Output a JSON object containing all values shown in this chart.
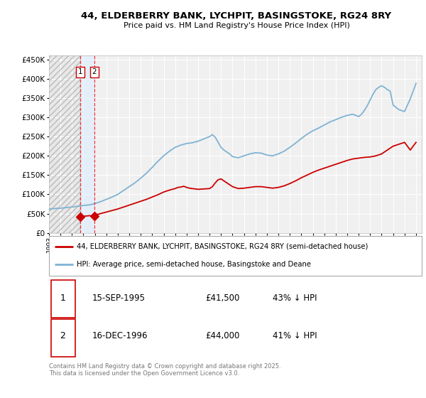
{
  "title": "44, ELDERBERRY BANK, LYCHPIT, BASINGSTOKE, RG24 8RY",
  "subtitle": "Price paid vs. HM Land Registry's House Price Index (HPI)",
  "legend_house": "44, ELDERBERRY BANK, LYCHPIT, BASINGSTOKE, RG24 8RY (semi-detached house)",
  "legend_hpi": "HPI: Average price, semi-detached house, Basingstoke and Deane",
  "transaction1_date": "15-SEP-1995",
  "transaction1_price": "£41,500",
  "transaction1_hpi": "43% ↓ HPI",
  "transaction1_year": 1995.71,
  "transaction1_value": 41500,
  "transaction2_date": "16-DEC-1996",
  "transaction2_price": "£44,000",
  "transaction2_hpi": "41% ↓ HPI",
  "transaction2_year": 1996.96,
  "transaction2_value": 44000,
  "house_line_color": "#cc0000",
  "hpi_line_color": "#7fb3d3",
  "vline_color": "#ee3333",
  "footer": "Contains HM Land Registry data © Crown copyright and database right 2025.\nThis data is licensed under the Open Government Licence v3.0.",
  "ylim": [
    0,
    460000
  ],
  "xlim_start": 1993,
  "xlim_end": 2025.5,
  "background_color": "#ffffff",
  "plot_bg_color": "#f0f0f0",
  "hpi_years": [
    1993.0,
    1993.5,
    1994.0,
    1994.5,
    1995.0,
    1995.5,
    1996.0,
    1996.5,
    1997.0,
    1997.5,
    1998.0,
    1998.5,
    1999.0,
    1999.5,
    2000.0,
    2000.5,
    2001.0,
    2001.5,
    2002.0,
    2002.5,
    2003.0,
    2003.5,
    2004.0,
    2004.5,
    2005.0,
    2005.5,
    2006.0,
    2006.5,
    2007.0,
    2007.25,
    2007.5,
    2007.75,
    2008.0,
    2008.25,
    2008.5,
    2008.75,
    2009.0,
    2009.5,
    2010.0,
    2010.5,
    2011.0,
    2011.5,
    2012.0,
    2012.5,
    2013.0,
    2013.5,
    2014.0,
    2014.5,
    2015.0,
    2015.5,
    2016.0,
    2016.5,
    2017.0,
    2017.5,
    2018.0,
    2018.5,
    2019.0,
    2019.5,
    2020.0,
    2020.25,
    2020.5,
    2020.75,
    2021.0,
    2021.25,
    2021.5,
    2021.75,
    2022.0,
    2022.25,
    2022.5,
    2022.75,
    2023.0,
    2023.5,
    2024.0,
    2024.5,
    2025.0
  ],
  "hpi_values": [
    62000,
    63000,
    64000,
    65500,
    67000,
    69000,
    71000,
    72500,
    76000,
    81000,
    87000,
    93000,
    100000,
    110000,
    120000,
    130000,
    142000,
    155000,
    170000,
    186000,
    200000,
    212000,
    222000,
    228000,
    232000,
    234000,
    238000,
    244000,
    250000,
    255000,
    248000,
    235000,
    222000,
    215000,
    210000,
    205000,
    198000,
    195000,
    200000,
    205000,
    208000,
    207000,
    202000,
    200000,
    205000,
    212000,
    222000,
    233000,
    245000,
    256000,
    265000,
    272000,
    280000,
    288000,
    294000,
    300000,
    305000,
    308000,
    302000,
    308000,
    318000,
    330000,
    345000,
    360000,
    372000,
    378000,
    382000,
    378000,
    372000,
    368000,
    332000,
    320000,
    315000,
    348000,
    388000
  ],
  "house_years": [
    1995.71,
    1996.0,
    1996.5,
    1996.96,
    1997.0,
    1997.5,
    1998.0,
    1998.5,
    1999.0,
    1999.5,
    2000.0,
    2000.5,
    2001.0,
    2001.5,
    2002.0,
    2002.5,
    2003.0,
    2003.5,
    2004.0,
    2004.25,
    2004.5,
    2004.75,
    2005.0,
    2005.25,
    2005.5,
    2005.75,
    2006.0,
    2006.5,
    2007.0,
    2007.25,
    2007.5,
    2007.75,
    2008.0,
    2008.5,
    2009.0,
    2009.5,
    2010.0,
    2010.5,
    2011.0,
    2011.5,
    2012.0,
    2012.5,
    2013.0,
    2013.5,
    2014.0,
    2014.5,
    2015.0,
    2015.5,
    2016.0,
    2016.5,
    2017.0,
    2017.5,
    2018.0,
    2018.5,
    2019.0,
    2019.5,
    2020.0,
    2020.5,
    2021.0,
    2021.5,
    2022.0,
    2022.5,
    2023.0,
    2023.5,
    2024.0,
    2024.5,
    2025.0
  ],
  "house_values": [
    41500,
    43000,
    44500,
    44000,
    46000,
    50000,
    54000,
    58000,
    62000,
    67000,
    72000,
    77000,
    82000,
    87000,
    93000,
    99000,
    106000,
    111000,
    115000,
    118000,
    119000,
    121000,
    118000,
    116000,
    115000,
    114000,
    113000,
    114000,
    115000,
    120000,
    130000,
    138000,
    140000,
    130000,
    120000,
    115000,
    116000,
    118000,
    120000,
    120000,
    118000,
    116000,
    118000,
    122000,
    128000,
    135000,
    143000,
    150000,
    157000,
    163000,
    168000,
    173000,
    178000,
    183000,
    188000,
    192000,
    194000,
    196000,
    197000,
    200000,
    205000,
    215000,
    225000,
    230000,
    235000,
    215000,
    235000
  ]
}
